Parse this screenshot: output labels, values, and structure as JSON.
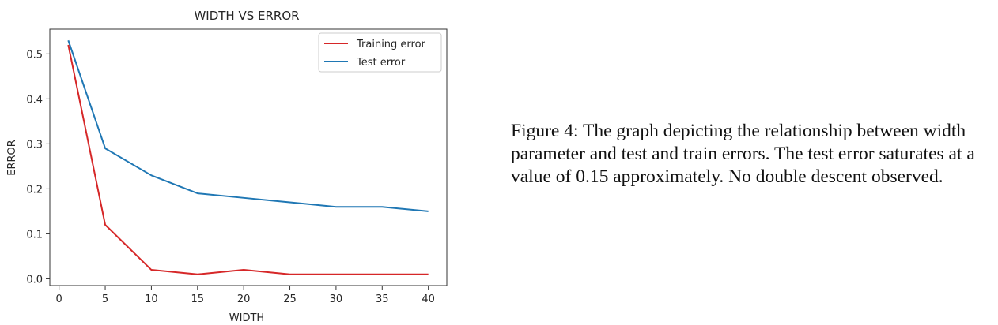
{
  "chart_data": {
    "type": "line",
    "title": "WIDTH VS ERROR",
    "xlabel": "WIDTH",
    "ylabel": "ERROR",
    "x": [
      1,
      5,
      10,
      15,
      20,
      25,
      30,
      35,
      40
    ],
    "series": [
      {
        "name": "Training error",
        "color": "#d62728",
        "values": [
          0.52,
          0.12,
          0.02,
          0.01,
          0.02,
          0.01,
          0.01,
          0.01,
          0.01
        ]
      },
      {
        "name": "Test error",
        "color": "#1f77b4",
        "values": [
          0.53,
          0.29,
          0.23,
          0.19,
          0.18,
          0.17,
          0.16,
          0.16,
          0.15
        ]
      }
    ],
    "xticks": [
      "0",
      "5",
      "10",
      "15",
      "20",
      "25",
      "30",
      "35",
      "40"
    ],
    "yticks": [
      "0.0",
      "0.1",
      "0.2",
      "0.3",
      "0.4",
      "0.5"
    ],
    "xlim": [
      -1,
      42
    ],
    "ylim": [
      -0.015,
      0.555
    ],
    "grid": false,
    "legend_position": "top-right"
  },
  "caption": "Figure 4: The graph depicting the relationship between width parameter and test and train errors. The test error saturates at a value of 0.15 approximately. No double descent observed."
}
